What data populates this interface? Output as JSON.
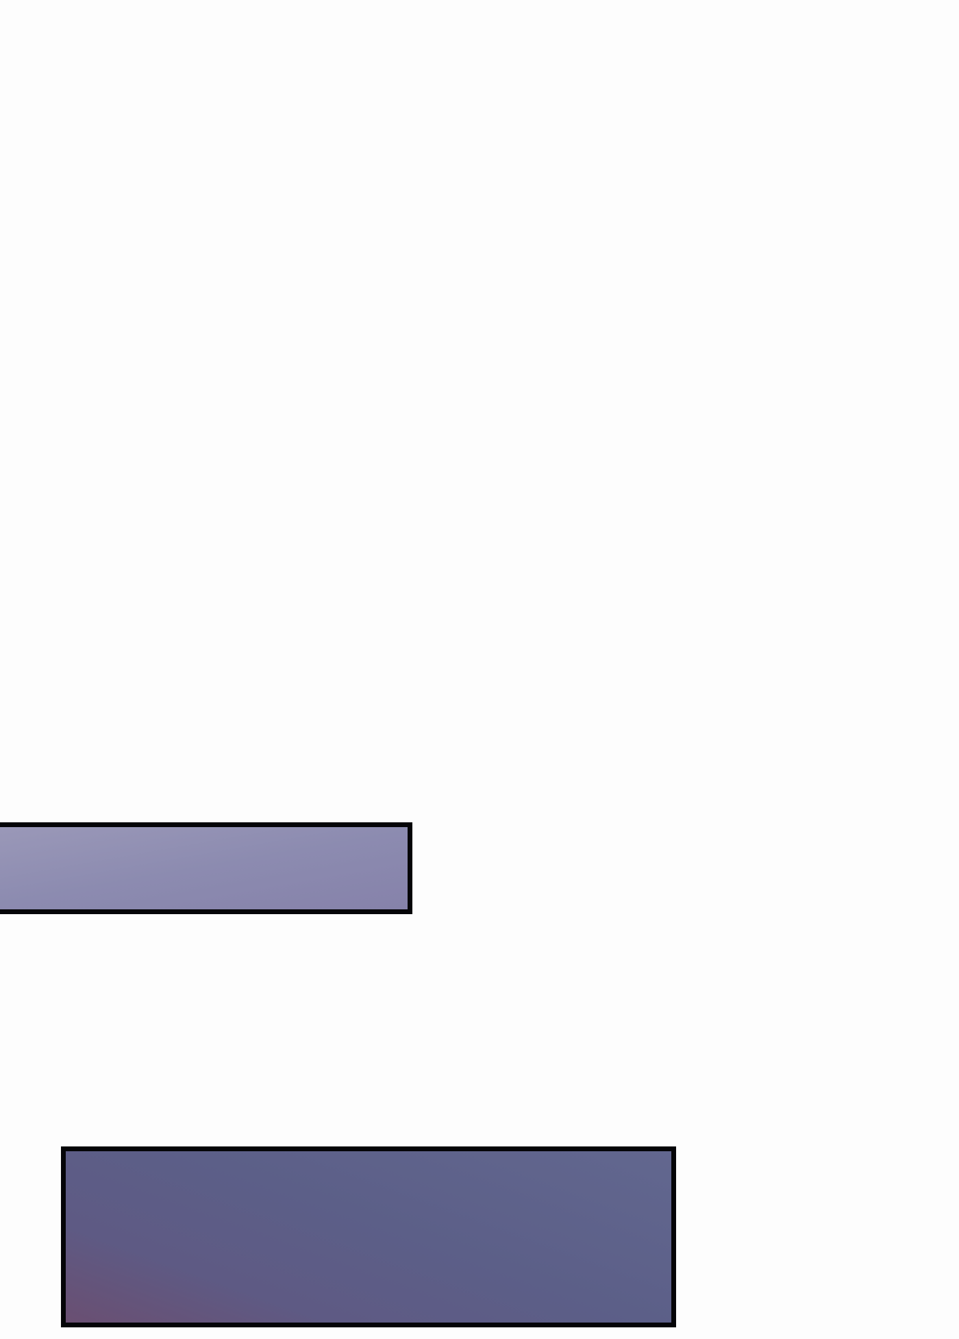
{
  "shapes": [
    {
      "name": "upper-bar",
      "fill": "#8e8cb0",
      "stroke": "#050508"
    },
    {
      "name": "lower-box",
      "fill": "#5e6088",
      "stroke": "#050508"
    }
  ]
}
